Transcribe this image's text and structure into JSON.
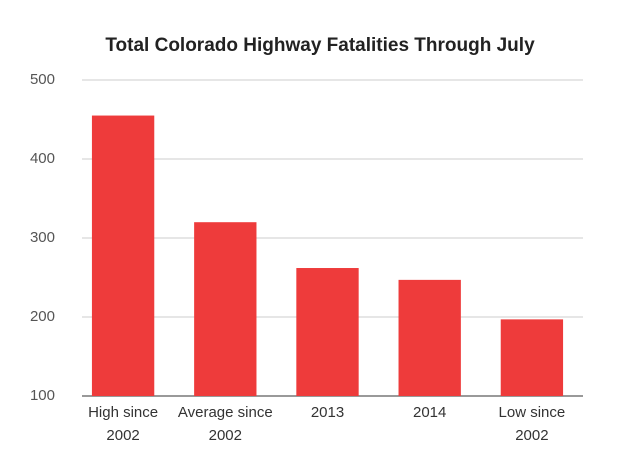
{
  "chart_data": {
    "type": "bar",
    "title": "Total Colorado Highway Fatalities Through July",
    "categories": [
      "High since 2002",
      "Average since 2002",
      "2013",
      "2014",
      "Low since 2002"
    ],
    "values": [
      455,
      320,
      262,
      247,
      197
    ],
    "color": "#ee3b3b",
    "ylim": [
      100,
      500
    ],
    "yticks": [
      100,
      200,
      300,
      400,
      500
    ],
    "grid": true
  }
}
